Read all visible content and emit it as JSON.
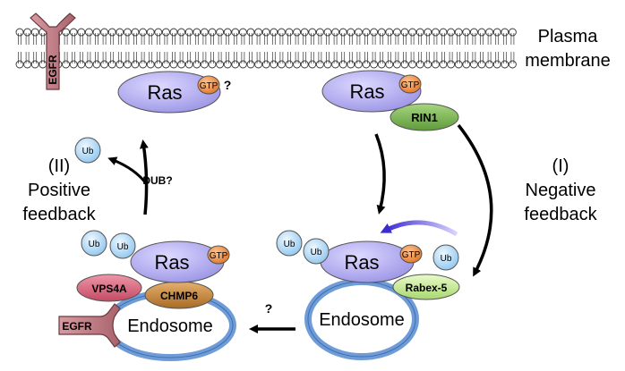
{
  "membrane_label": {
    "line1": "Plasma",
    "line2": "membrane"
  },
  "receptor_label": "EGFR",
  "ras_label": "Ras",
  "gtp_label": "GTP",
  "question_mark": "?",
  "rin1_label": "RIN1",
  "ub_label": "Ub",
  "dub_label": "DUB?",
  "positive": {
    "line1": "(II)",
    "line2": "Positive",
    "line3": "feedback"
  },
  "negative": {
    "line1": "(I)",
    "line2": "Negative",
    "line3": "feedback"
  },
  "rabex_label": "Rabex-5",
  "vps4a_label": "VPS4A",
  "chmp6_label": "CHMP6",
  "endosome_label": "Endosome",
  "colors": {
    "ras": "#b3aef0",
    "gtp": "#f0883c",
    "rin1": "#7fb55a",
    "rabex": "#c9ec9c",
    "ub": "#bfe0f7",
    "vps4a": "#d8627a",
    "chmp6": "#c78a40",
    "endosome": "#6f9bd6",
    "egfr": "#c0868d",
    "lipid_head": "#ffffff"
  }
}
